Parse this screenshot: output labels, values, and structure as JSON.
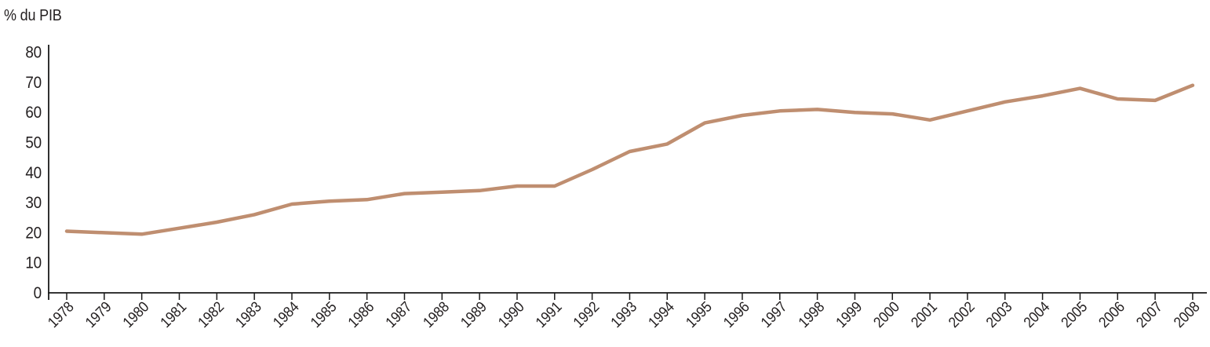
{
  "page": {
    "background": "#ffffff"
  },
  "chart_data": {
    "type": "line",
    "title": "",
    "ylabel": "% du PIB",
    "xlabel": "",
    "x_labels": [
      "1978",
      "1979",
      "1980",
      "1981",
      "1982",
      "1983",
      "1984",
      "1985",
      "1986",
      "1987",
      "1988",
      "1989",
      "1990",
      "1991",
      "1992",
      "1993",
      "1994",
      "1995",
      "1996",
      "1997",
      "1998",
      "1999",
      "2000",
      "2001",
      "2002",
      "2003",
      "2004",
      "2005",
      "2006",
      "2007",
      "2008"
    ],
    "values": [
      20.5,
      20,
      19.5,
      21.5,
      23.5,
      26,
      29.5,
      30.5,
      31,
      33,
      33.5,
      34,
      35.5,
      35.5,
      41,
      47,
      49.5,
      56.5,
      59,
      60.5,
      61,
      60,
      59.5,
      57.5,
      60.5,
      63.5,
      65.5,
      68,
      64.5,
      64,
      69
    ],
    "yticks": [
      0,
      10,
      20,
      30,
      40,
      50,
      60,
      70,
      80
    ],
    "ylim": [
      0,
      80
    ],
    "grid": false,
    "legend": "none",
    "line_color": "#bf8e70",
    "axis_color": "#1a1a1a",
    "text_color": "#231f20"
  }
}
